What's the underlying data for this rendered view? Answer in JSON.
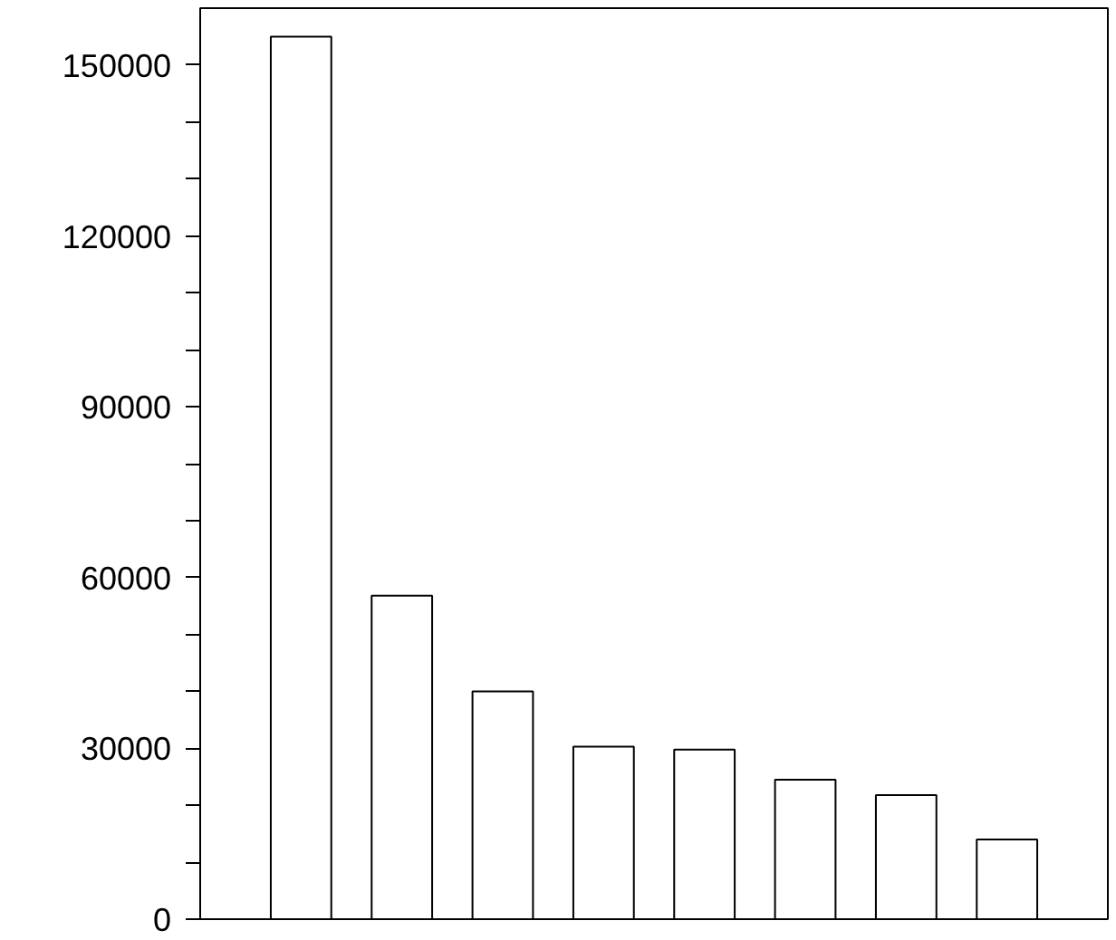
{
  "chart_data": {
    "type": "bar",
    "categories": [
      null,
      null,
      null,
      null,
      null,
      null,
      null,
      null
    ],
    "values": [
      155000,
      56800,
      40000,
      30300,
      29800,
      24500,
      21800,
      14000
    ],
    "color": "#ffffff",
    "ylim": [
      0,
      160000
    ],
    "yticks": [
      0,
      {
        "value": 10000,
        "label": null
      },
      {
        "value": 20000,
        "label": null
      },
      30000,
      {
        "value": 40000,
        "label": null
      },
      {
        "value": 50000,
        "label": null
      },
      60000,
      {
        "value": 70000,
        "label": null
      },
      {
        "value": 80000,
        "label": null
      },
      90000,
      {
        "value": 100000,
        "label": null
      },
      {
        "value": 110000,
        "label": null
      },
      120000,
      {
        "value": 130000,
        "label": null
      },
      {
        "value": 140000,
        "label": null
      },
      150000
    ],
    "grid": false
  }
}
